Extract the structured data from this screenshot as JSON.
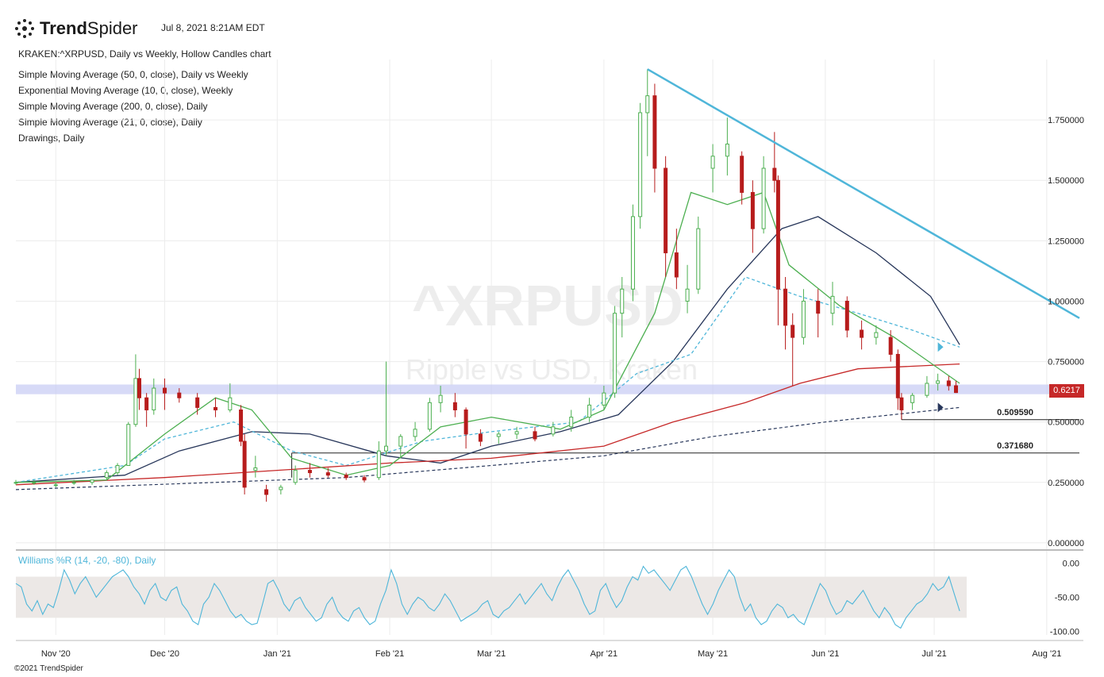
{
  "header": {
    "brand_bold": "Trend",
    "brand_light": "Spider",
    "timestamp": "Jul 8, 2021 8:21AM EDT",
    "chart_title": "KRAKEN:^XRPUSD, Daily vs Weekly, Hollow Candles chart"
  },
  "legend": [
    {
      "label": "Simple Moving Average (50, 0, close), Daily vs Weekly",
      "color": "#27365a"
    },
    {
      "label": "Exponential Moving Average (10, 0, close), Weekly",
      "color": "#4fb6d9"
    },
    {
      "label": "Simple Moving Average (200, 0, close), Daily",
      "color": "#c62828"
    },
    {
      "label": "Simple Moving Average (21, 0, close), Daily",
      "color": "#4caf50"
    },
    {
      "label": "Drawings, Daily",
      "color": "#222222"
    }
  ],
  "watermark": {
    "symbol": "^XRPUSD",
    "name": "Ripple vs USD, Kraken"
  },
  "last_price": {
    "label": "0.6217",
    "color": "#c62828"
  },
  "levels": [
    {
      "label": "0.509590",
      "value": 0.50959
    },
    {
      "label": "0.371680",
      "value": 0.37168
    }
  ],
  "indicator": {
    "label": "Williams %R (14, -20, -80), Daily",
    "color": "#4fb6d9"
  },
  "copyright": "©2021 TrendSpider",
  "colors": {
    "up": "#4caf50",
    "down": "#b71c1c",
    "trendline": "#4fb6d9",
    "band": "#c9cdf4",
    "grid": "#ececec"
  },
  "chart_data": [
    {
      "type": "candlestick",
      "title": "KRAKEN:^XRPUSD, Daily vs Weekly, Hollow Candles chart",
      "x_ticks": [
        "Nov '20",
        "Dec '20",
        "Jan '21",
        "Feb '21",
        "Mar '21",
        "Apr '21",
        "May '21",
        "Jun '21",
        "Jul '21",
        "Aug '21"
      ],
      "y_ticks": [
        "0.000000",
        "0.250000",
        "0.500000",
        "0.750000",
        "1.000000",
        "1.250000",
        "1.500000",
        "1.750000"
      ],
      "ylim": [
        -0.02,
        2.0
      ],
      "x_range": [
        "2020-10-21",
        "2021-08-10"
      ],
      "grid": true,
      "ohlc_daily_approx": [
        [
          "2020-10-21",
          0.25,
          0.26,
          0.24,
          0.25
        ],
        [
          "2020-10-26",
          0.25,
          0.26,
          0.24,
          0.25
        ],
        [
          "2020-11-01",
          0.24,
          0.25,
          0.23,
          0.24
        ],
        [
          "2020-11-06",
          0.25,
          0.26,
          0.24,
          0.25
        ],
        [
          "2020-11-11",
          0.25,
          0.26,
          0.24,
          0.26
        ],
        [
          "2020-11-15",
          0.27,
          0.3,
          0.26,
          0.29
        ],
        [
          "2020-11-18",
          0.29,
          0.33,
          0.28,
          0.32
        ],
        [
          "2020-11-21",
          0.32,
          0.5,
          0.32,
          0.49
        ],
        [
          "2020-11-23",
          0.49,
          0.78,
          0.48,
          0.68
        ],
        [
          "2020-11-24",
          0.68,
          0.72,
          0.55,
          0.6
        ],
        [
          "2020-11-26",
          0.6,
          0.62,
          0.48,
          0.55
        ],
        [
          "2020-11-28",
          0.55,
          0.68,
          0.53,
          0.64
        ],
        [
          "2020-12-01",
          0.64,
          0.68,
          0.55,
          0.62
        ],
        [
          "2020-12-05",
          0.62,
          0.64,
          0.58,
          0.6
        ],
        [
          "2020-12-10",
          0.6,
          0.62,
          0.53,
          0.56
        ],
        [
          "2020-12-15",
          0.56,
          0.6,
          0.52,
          0.55
        ],
        [
          "2020-12-19",
          0.55,
          0.66,
          0.54,
          0.6
        ],
        [
          "2020-12-22",
          0.55,
          0.57,
          0.4,
          0.42
        ],
        [
          "2020-12-23",
          0.42,
          0.45,
          0.2,
          0.23
        ],
        [
          "2020-12-26",
          0.3,
          0.36,
          0.27,
          0.31
        ],
        [
          "2020-12-29",
          0.22,
          0.24,
          0.17,
          0.2
        ],
        [
          "2021-01-02",
          0.22,
          0.24,
          0.2,
          0.23
        ],
        [
          "2021-01-06",
          0.25,
          0.32,
          0.24,
          0.3
        ],
        [
          "2021-01-10",
          0.3,
          0.33,
          0.27,
          0.29
        ],
        [
          "2021-01-15",
          0.29,
          0.31,
          0.27,
          0.28
        ],
        [
          "2021-01-20",
          0.28,
          0.29,
          0.26,
          0.27
        ],
        [
          "2021-01-25",
          0.27,
          0.28,
          0.25,
          0.26
        ],
        [
          "2021-01-29",
          0.27,
          0.42,
          0.26,
          0.38
        ],
        [
          "2021-01-31",
          0.38,
          0.75,
          0.36,
          0.4
        ],
        [
          "2021-02-04",
          0.4,
          0.45,
          0.35,
          0.44
        ],
        [
          "2021-02-08",
          0.44,
          0.5,
          0.42,
          0.47
        ],
        [
          "2021-02-12",
          0.47,
          0.6,
          0.46,
          0.58
        ],
        [
          "2021-02-15",
          0.58,
          0.65,
          0.54,
          0.61
        ],
        [
          "2021-02-19",
          0.58,
          0.62,
          0.52,
          0.55
        ],
        [
          "2021-02-22",
          0.55,
          0.56,
          0.39,
          0.45
        ],
        [
          "2021-02-26",
          0.45,
          0.47,
          0.4,
          0.42
        ],
        [
          "2021-03-03",
          0.44,
          0.46,
          0.41,
          0.45
        ],
        [
          "2021-03-08",
          0.45,
          0.48,
          0.43,
          0.46
        ],
        [
          "2021-03-13",
          0.46,
          0.48,
          0.42,
          0.43
        ],
        [
          "2021-03-18",
          0.45,
          0.5,
          0.44,
          0.48
        ],
        [
          "2021-03-23",
          0.48,
          0.55,
          0.46,
          0.52
        ],
        [
          "2021-03-28",
          0.52,
          0.6,
          0.5,
          0.57
        ],
        [
          "2021-04-01",
          0.57,
          0.65,
          0.55,
          0.62
        ],
        [
          "2021-04-04",
          0.62,
          0.98,
          0.6,
          0.95
        ],
        [
          "2021-04-06",
          0.95,
          1.1,
          0.85,
          1.05
        ],
        [
          "2021-04-09",
          1.05,
          1.4,
          1.0,
          1.35
        ],
        [
          "2021-04-11",
          1.35,
          1.82,
          1.3,
          1.78
        ],
        [
          "2021-04-13",
          1.78,
          1.96,
          1.6,
          1.85
        ],
        [
          "2021-04-15",
          1.85,
          1.9,
          1.45,
          1.55
        ],
        [
          "2021-04-18",
          1.55,
          1.6,
          1.1,
          1.2
        ],
        [
          "2021-04-21",
          1.2,
          1.3,
          1.05,
          1.1
        ],
        [
          "2021-04-24",
          1.0,
          1.15,
          0.95,
          1.05
        ],
        [
          "2021-04-27",
          1.05,
          1.35,
          1.03,
          1.3
        ],
        [
          "2021-05-01",
          1.55,
          1.65,
          1.45,
          1.6
        ],
        [
          "2021-05-05",
          1.6,
          1.76,
          1.52,
          1.65
        ],
        [
          "2021-05-09",
          1.6,
          1.62,
          1.4,
          1.45
        ],
        [
          "2021-05-12",
          1.45,
          1.5,
          1.2,
          1.3
        ],
        [
          "2021-05-15",
          1.3,
          1.6,
          1.28,
          1.55
        ],
        [
          "2021-05-18",
          1.55,
          1.7,
          1.45,
          1.5
        ],
        [
          "2021-05-19",
          1.5,
          1.52,
          0.9,
          1.05
        ],
        [
          "2021-05-21",
          1.05,
          1.1,
          0.8,
          0.9
        ],
        [
          "2021-05-23",
          0.9,
          0.95,
          0.65,
          0.85
        ],
        [
          "2021-05-26",
          0.85,
          1.05,
          0.82,
          1.0
        ],
        [
          "2021-05-30",
          1.0,
          1.05,
          0.85,
          0.95
        ],
        [
          "2021-06-03",
          0.95,
          1.08,
          0.9,
          1.02
        ],
        [
          "2021-06-07",
          1.0,
          1.02,
          0.85,
          0.88
        ],
        [
          "2021-06-11",
          0.88,
          0.92,
          0.8,
          0.85
        ],
        [
          "2021-06-15",
          0.85,
          0.9,
          0.82,
          0.87
        ],
        [
          "2021-06-19",
          0.85,
          0.88,
          0.75,
          0.78
        ],
        [
          "2021-06-21",
          0.78,
          0.8,
          0.55,
          0.6
        ],
        [
          "2021-06-22",
          0.6,
          0.62,
          0.51,
          0.55
        ],
        [
          "2021-06-25",
          0.58,
          0.62,
          0.55,
          0.61
        ],
        [
          "2021-06-29",
          0.61,
          0.69,
          0.6,
          0.66
        ],
        [
          "2021-07-02",
          0.66,
          0.7,
          0.63,
          0.67
        ],
        [
          "2021-07-05",
          0.67,
          0.69,
          0.63,
          0.65
        ],
        [
          "2021-07-07",
          0.65,
          0.67,
          0.62,
          0.6217
        ]
      ],
      "series": [
        {
          "name": "Simple Moving Average (50, 0, close), Daily vs Weekly",
          "color": "#27365a",
          "points": [
            [
              "2020-10-21",
              0.25
            ],
            [
              "2020-11-20",
              0.28
            ],
            [
              "2020-12-05",
              0.38
            ],
            [
              "2020-12-25",
              0.46
            ],
            [
              "2021-01-10",
              0.45
            ],
            [
              "2021-01-31",
              0.36
            ],
            [
              "2021-02-15",
              0.33
            ],
            [
              "2021-03-01",
              0.4
            ],
            [
              "2021-03-20",
              0.46
            ],
            [
              "2021-04-05",
              0.53
            ],
            [
              "2021-04-20",
              0.75
            ],
            [
              "2021-05-05",
              1.05
            ],
            [
              "2021-05-20",
              1.3
            ],
            [
              "2021-05-30",
              1.35
            ],
            [
              "2021-06-15",
              1.2
            ],
            [
              "2021-06-30",
              1.02
            ],
            [
              "2021-07-08",
              0.82
            ]
          ]
        },
        {
          "name": "Exponential Moving Average (10, 0, close), Weekly",
          "color": "#4fb6d9",
          "dashed": true,
          "points": [
            [
              "2020-10-21",
              0.25
            ],
            [
              "2020-11-20",
              0.32
            ],
            [
              "2020-12-01",
              0.43
            ],
            [
              "2020-12-20",
              0.5
            ],
            [
              "2021-01-05",
              0.38
            ],
            [
              "2021-01-20",
              0.32
            ],
            [
              "2021-02-10",
              0.42
            ],
            [
              "2021-03-01",
              0.46
            ],
            [
              "2021-03-25",
              0.5
            ],
            [
              "2021-04-10",
              0.7
            ],
            [
              "2021-04-25",
              0.78
            ],
            [
              "2021-05-10",
              1.1
            ],
            [
              "2021-05-25",
              1.02
            ],
            [
              "2021-06-10",
              0.95
            ],
            [
              "2021-06-25",
              0.88
            ],
            [
              "2021-07-08",
              0.81
            ]
          ]
        },
        {
          "name": "Simple Moving Average (200, 0, close), Daily",
          "color": "#c62828",
          "points": [
            [
              "2020-10-21",
              0.24
            ],
            [
              "2020-12-01",
              0.27
            ],
            [
              "2021-01-01",
              0.3
            ],
            [
              "2021-02-01",
              0.33
            ],
            [
              "2021-03-01",
              0.35
            ],
            [
              "2021-04-01",
              0.4
            ],
            [
              "2021-04-20",
              0.5
            ],
            [
              "2021-05-10",
              0.58
            ],
            [
              "2021-05-25",
              0.66
            ],
            [
              "2021-06-10",
              0.72
            ],
            [
              "2021-07-08",
              0.74
            ]
          ]
        },
        {
          "name": "Simple Moving Average (21, 0, close), Daily",
          "color": "#4caf50",
          "points": [
            [
              "2020-10-21",
              0.25
            ],
            [
              "2020-11-15",
              0.26
            ],
            [
              "2020-12-01",
              0.45
            ],
            [
              "2020-12-15",
              0.6
            ],
            [
              "2020-12-25",
              0.55
            ],
            [
              "2021-01-05",
              0.35
            ],
            [
              "2021-01-20",
              0.28
            ],
            [
              "2021-02-01",
              0.32
            ],
            [
              "2021-02-15",
              0.48
            ],
            [
              "2021-03-01",
              0.52
            ],
            [
              "2021-03-20",
              0.47
            ],
            [
              "2021-04-01",
              0.55
            ],
            [
              "2021-04-15",
              0.95
            ],
            [
              "2021-04-25",
              1.45
            ],
            [
              "2021-05-05",
              1.4
            ],
            [
              "2021-05-15",
              1.45
            ],
            [
              "2021-05-22",
              1.15
            ],
            [
              "2021-06-05",
              0.98
            ],
            [
              "2021-06-20",
              0.85
            ],
            [
              "2021-07-08",
              0.66
            ]
          ]
        },
        {
          "name": "Drawings, Daily",
          "color": "#4fb6d9",
          "points": [
            [
              "2021-04-13",
              1.96
            ],
            [
              "2021-08-10",
              0.93
            ]
          ]
        }
      ]
    },
    {
      "type": "line",
      "title": "Williams %R (14, -20, -80), Daily",
      "y_ticks": [
        "0.00",
        "-50.00",
        "-100.00"
      ],
      "ylim": [
        -105,
        5
      ],
      "band": [
        -80,
        -20
      ],
      "series": [
        {
          "name": "Williams %R (14, -20, -80), Daily",
          "color": "#4fb6d9",
          "values": [
            -30,
            -35,
            -60,
            -70,
            -55,
            -75,
            -60,
            -65,
            -40,
            -10,
            -25,
            -45,
            -30,
            -20,
            -35,
            -50,
            -40,
            -30,
            -20,
            -15,
            -10,
            -20,
            -35,
            -45,
            -60,
            -40,
            -30,
            -50,
            -55,
            -40,
            -35,
            -60,
            -70,
            -85,
            -90,
            -60,
            -50,
            -30,
            -40,
            -55,
            -70,
            -80,
            -75,
            -85,
            -90,
            -88,
            -60,
            -30,
            -25,
            -40,
            -60,
            -70,
            -55,
            -50,
            -65,
            -75,
            -85,
            -80,
            -60,
            -50,
            -70,
            -80,
            -85,
            -70,
            -65,
            -80,
            -90,
            -85,
            -60,
            -40,
            -10,
            -30,
            -60,
            -75,
            -60,
            -50,
            -55,
            -65,
            -70,
            -60,
            -45,
            -55,
            -70,
            -85,
            -80,
            -75,
            -70,
            -60,
            -55,
            -75,
            -80,
            -70,
            -65,
            -55,
            -45,
            -60,
            -50,
            -40,
            -30,
            -45,
            -55,
            -35,
            -20,
            -10,
            -25,
            -40,
            -60,
            -75,
            -70,
            -40,
            -30,
            -50,
            -65,
            -55,
            -35,
            -20,
            -25,
            -5,
            -15,
            -10,
            -20,
            -30,
            -40,
            -25,
            -10,
            -5,
            -20,
            -40,
            -60,
            -75,
            -60,
            -40,
            -25,
            -10,
            -20,
            -50,
            -70,
            -60,
            -80,
            -90,
            -85,
            -70,
            -60,
            -65,
            -80,
            -75,
            -85,
            -90,
            -70,
            -50,
            -30,
            -40,
            -60,
            -75,
            -70,
            -55,
            -60,
            -50,
            -40,
            -55,
            -70,
            -80,
            -65,
            -75,
            -90,
            -95,
            -80,
            -70,
            -60,
            -55,
            -45,
            -30,
            -40,
            -35,
            -20,
            -45,
            -70
          ]
        }
      ]
    }
  ]
}
